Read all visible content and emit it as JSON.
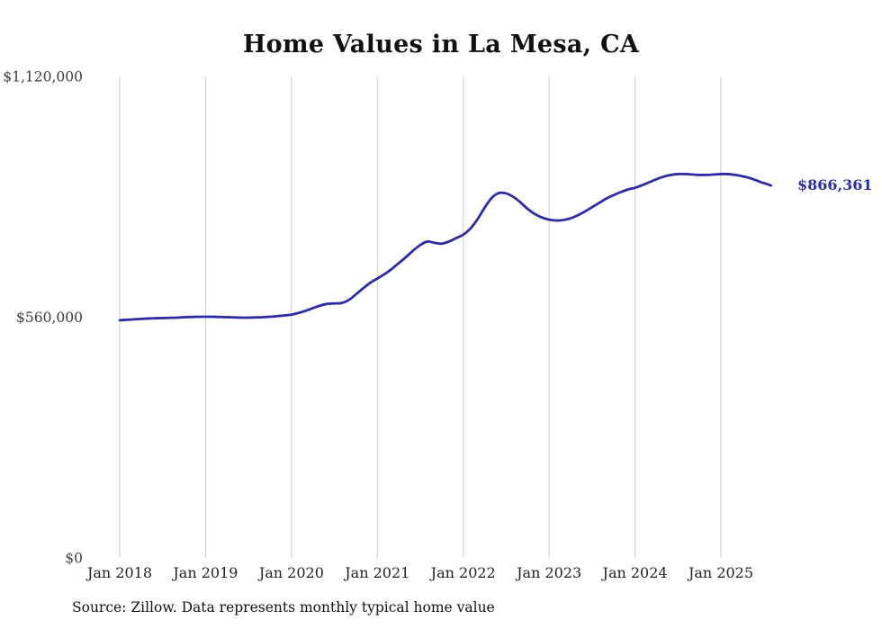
{
  "chart_data": {
    "type": "line",
    "title": "Home Values in La Mesa, CA",
    "source": "Source: Zillow. Data represents monthly typical home value",
    "end_label": "$866,361",
    "unit": "USD",
    "x_start": "2018-01",
    "x_interval": "month",
    "ylim": [
      0,
      1120000
    ],
    "grid": "vertical-only",
    "legend": "none",
    "line_color": "#2e2ba6",
    "grid_color": "#cccccc",
    "y_ticks": [
      {
        "label": "$0",
        "value": 0
      },
      {
        "label": "$560,000",
        "value": 560000
      },
      {
        "label": "$1,120,000",
        "value": 1120000
      }
    ],
    "x_ticks": [
      {
        "label": "Jan 2018",
        "month_index": 0
      },
      {
        "label": "Jan 2019",
        "month_index": 12
      },
      {
        "label": "Jan 2020",
        "month_index": 24
      },
      {
        "label": "Jan 2021",
        "month_index": 36
      },
      {
        "label": "Jan 2022",
        "month_index": 48
      },
      {
        "label": "Jan 2023",
        "month_index": 60
      },
      {
        "label": "Jan 2024",
        "month_index": 72
      },
      {
        "label": "Jan 2025",
        "month_index": 84
      }
    ],
    "values": [
      553000,
      554000,
      555000,
      556000,
      557000,
      557500,
      558000,
      558500,
      559000,
      560000,
      560500,
      561000,
      561000,
      561000,
      560500,
      560000,
      559500,
      559000,
      559000,
      559500,
      560000,
      561000,
      562500,
      564000,
      566000,
      570000,
      575000,
      581000,
      587000,
      591000,
      592000,
      593000,
      600000,
      613000,
      627000,
      640000,
      650000,
      660000,
      672000,
      686000,
      700000,
      715000,
      728000,
      736000,
      733000,
      731000,
      736000,
      744000,
      752000,
      766000,
      788000,
      815000,
      838000,
      849000,
      848000,
      840000,
      827000,
      812000,
      800000,
      792000,
      787000,
      785000,
      786000,
      790000,
      797000,
      806000,
      816000,
      826000,
      836000,
      844000,
      851000,
      857000,
      861000,
      867000,
      874000,
      881000,
      887000,
      891000,
      893000,
      893000,
      892000,
      891000,
      891000,
      892000,
      893000,
      893000,
      891000,
      888000,
      884000,
      878000,
      872000,
      866361
    ]
  }
}
